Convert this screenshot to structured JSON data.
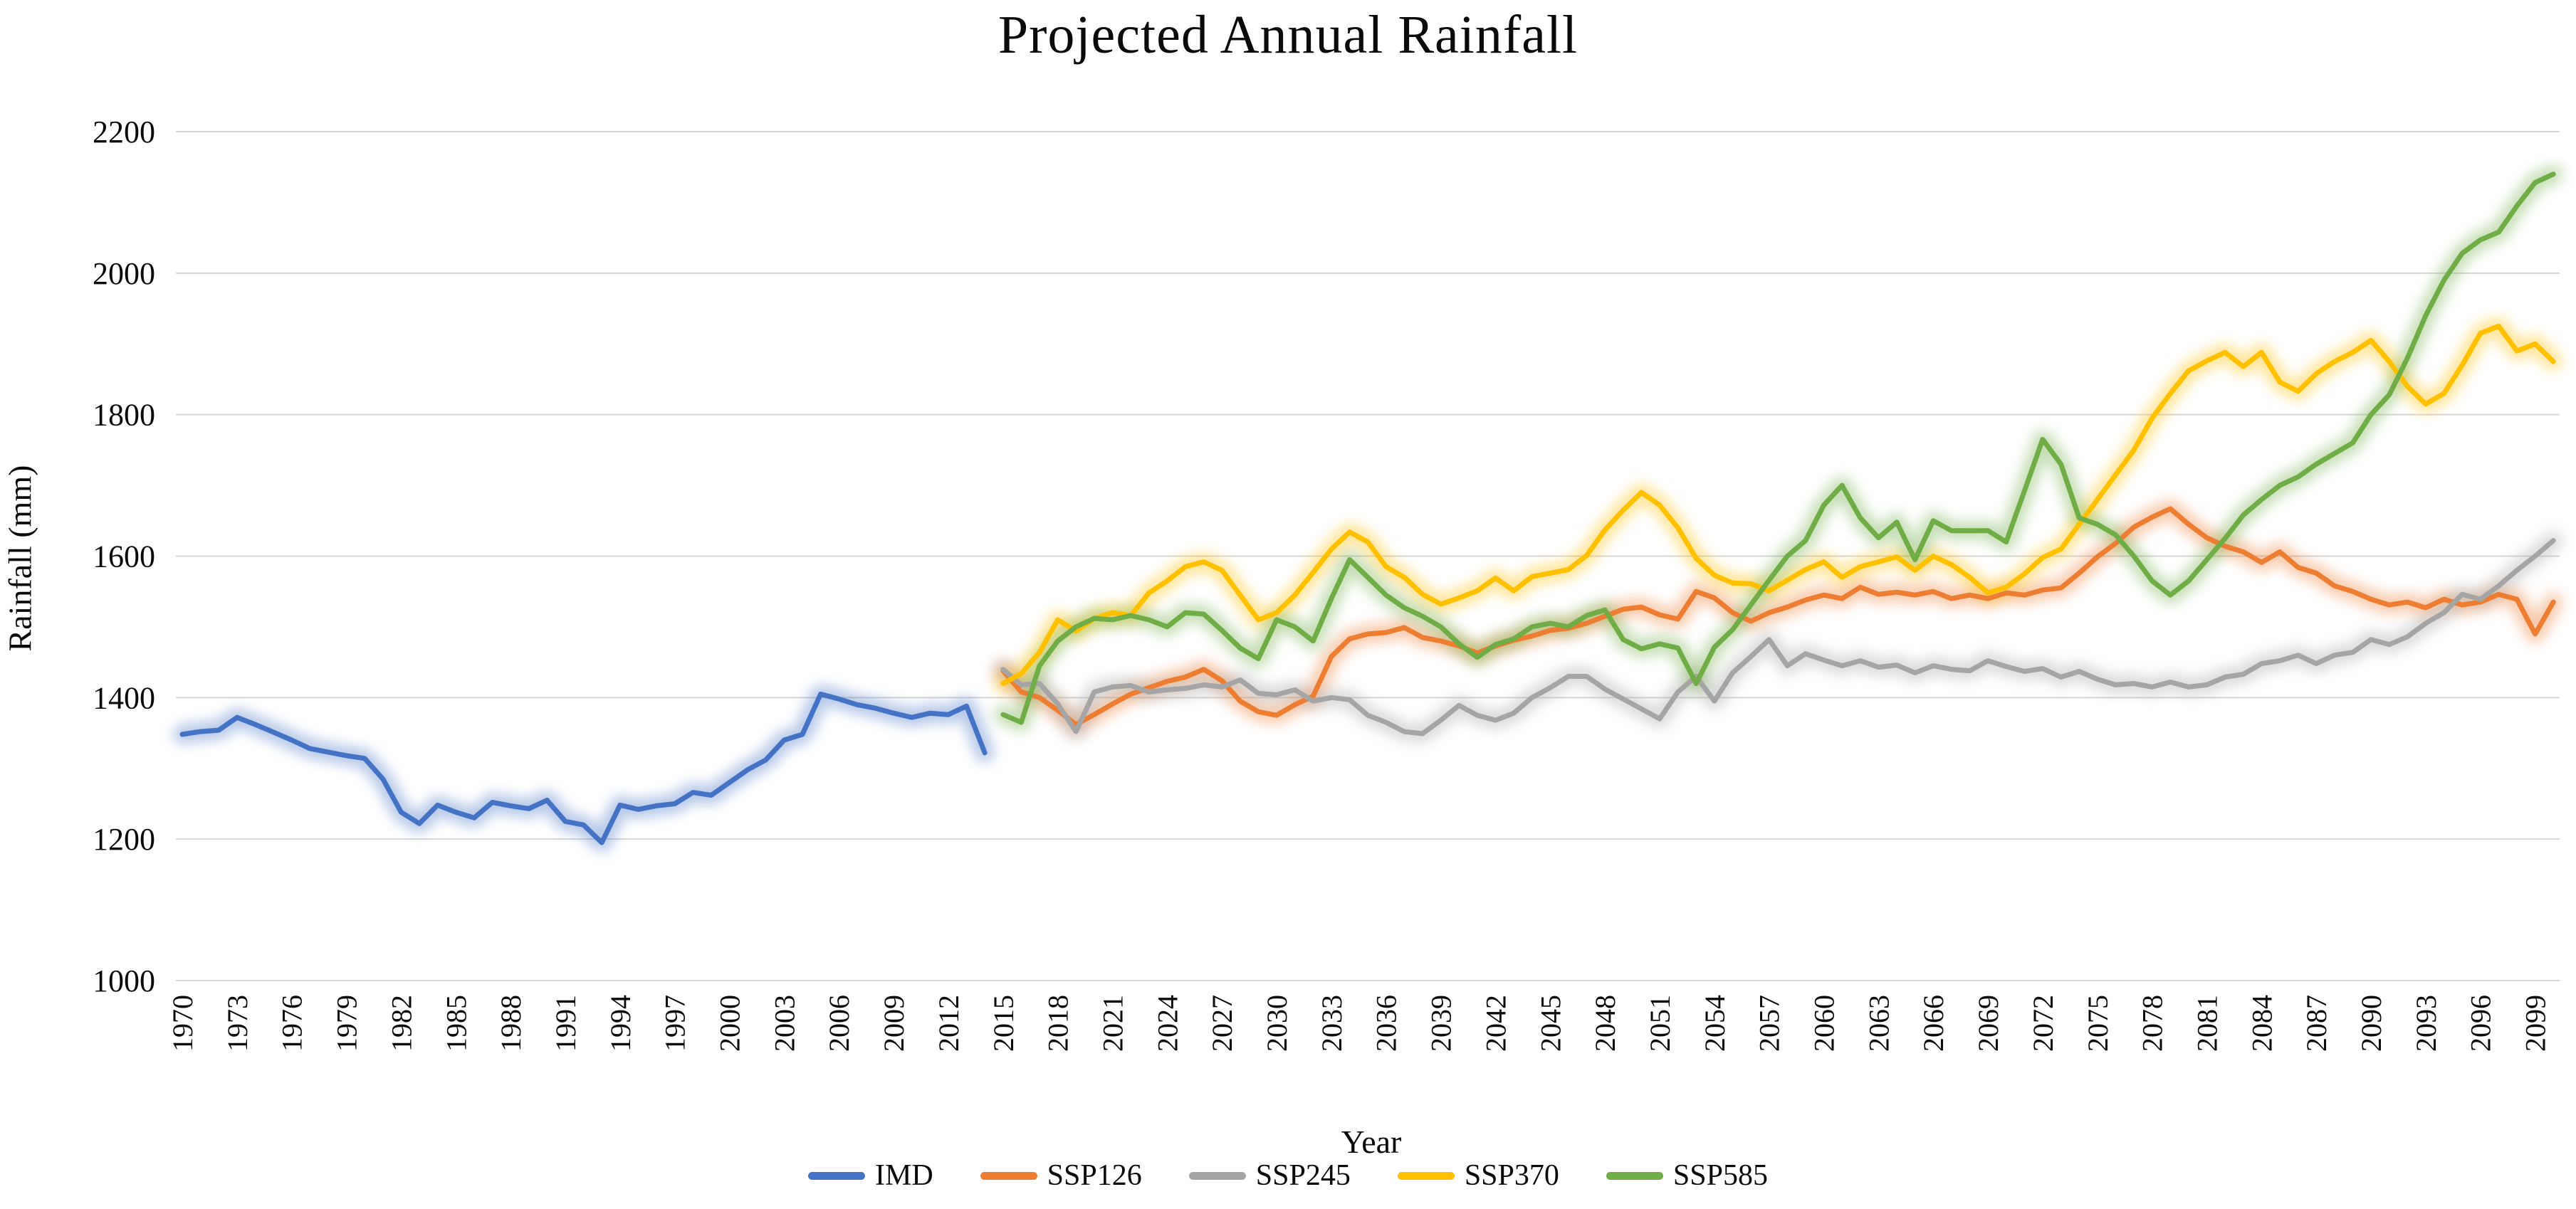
{
  "title": "Projected Annual Rainfall",
  "y_axis": {
    "title": "Rainfall (mm)",
    "min": 1000,
    "max": 2200,
    "tick_step": 200,
    "ticks": [
      2200,
      2000,
      1800,
      1600,
      1400,
      1200,
      1000
    ]
  },
  "x_axis": {
    "title": "Year",
    "tick_start": 1970,
    "tick_end": 2099,
    "tick_step": 3
  },
  "legend": [
    {
      "label": "IMD",
      "color": "#4472C4"
    },
    {
      "label": "SSP126",
      "color": "#ED7D31"
    },
    {
      "label": "SSP245",
      "color": "#A5A5A5"
    },
    {
      "label": "SSP370",
      "color": "#FFC000"
    },
    {
      "label": "SSP585",
      "color": "#70AD47"
    }
  ],
  "grid_color": "#D6D6D6",
  "chart_data": {
    "type": "line",
    "title": "Projected Annual Rainfall",
    "xlabel": "Year",
    "ylabel": "Rainfall (mm)",
    "ylim": [
      1000,
      2200
    ],
    "xlim": [
      1969,
      2101
    ],
    "grid": "horizontal",
    "legend_position": "bottom",
    "series": [
      {
        "name": "IMD",
        "color": "#4472C4",
        "start_year": 1970,
        "values": [
          1348,
          1352,
          1354,
          1372,
          1362,
          1351,
          1340,
          1328,
          1323,
          1318,
          1314,
          1285,
          1238,
          1222,
          1248,
          1238,
          1230,
          1252,
          1247,
          1243,
          1255,
          1225,
          1220,
          1195,
          1248,
          1242,
          1247,
          1250,
          1266,
          1262,
          1280,
          1298,
          1312,
          1340,
          1348,
          1405,
          1398,
          1390,
          1385,
          1378,
          1372,
          1378,
          1376,
          1388,
          1322
        ]
      },
      {
        "name": "SSP126",
        "color": "#ED7D31",
        "start_year": 2015,
        "values": [
          1438,
          1408,
          1400,
          1382,
          1362,
          1376,
          1391,
          1405,
          1414,
          1423,
          1429,
          1440,
          1424,
          1395,
          1380,
          1375,
          1390,
          1402,
          1458,
          1483,
          1490,
          1492,
          1499,
          1485,
          1480,
          1473,
          1463,
          1473,
          1481,
          1487,
          1495,
          1498,
          1505,
          1515,
          1525,
          1528,
          1517,
          1511,
          1550,
          1541,
          1520,
          1508,
          1520,
          1528,
          1538,
          1545,
          1540,
          1556,
          1546,
          1549,
          1545,
          1550,
          1540,
          1545,
          1540,
          1548,
          1545,
          1552,
          1555,
          1576,
          1599,
          1618,
          1641,
          1655,
          1667,
          1645,
          1626,
          1614,
          1606,
          1591,
          1606,
          1584,
          1576,
          1558,
          1550,
          1539,
          1531,
          1535,
          1527,
          1539,
          1531,
          1535,
          1546,
          1539,
          1490,
          1535
        ]
      },
      {
        "name": "SSP245",
        "color": "#A5A5A5",
        "start_year": 2015,
        "values": [
          1440,
          1418,
          1420,
          1391,
          1352,
          1408,
          1415,
          1417,
          1408,
          1411,
          1413,
          1418,
          1415,
          1425,
          1406,
          1404,
          1411,
          1395,
          1400,
          1397,
          1375,
          1365,
          1352,
          1349,
          1368,
          1389,
          1375,
          1368,
          1378,
          1400,
          1414,
          1430,
          1430,
          1412,
          1398,
          1384,
          1370,
          1408,
          1430,
          1395,
          1435,
          1458,
          1482,
          1445,
          1462,
          1453,
          1445,
          1452,
          1443,
          1446,
          1435,
          1445,
          1440,
          1438,
          1452,
          1444,
          1437,
          1441,
          1429,
          1437,
          1426,
          1418,
          1420,
          1415,
          1422,
          1415,
          1418,
          1429,
          1433,
          1448,
          1452,
          1460,
          1448,
          1460,
          1464,
          1482,
          1475,
          1486,
          1505,
          1520,
          1546,
          1539,
          1558,
          1580,
          1600,
          1622
        ]
      },
      {
        "name": "SSP370",
        "color": "#FFC000",
        "start_year": 2015,
        "values": [
          1420,
          1434,
          1464,
          1510,
          1494,
          1512,
          1520,
          1516,
          1548,
          1565,
          1585,
          1592,
          1580,
          1545,
          1510,
          1520,
          1545,
          1577,
          1610,
          1634,
          1620,
          1585,
          1570,
          1546,
          1532,
          1541,
          1551,
          1569,
          1551,
          1571,
          1576,
          1581,
          1601,
          1637,
          1665,
          1690,
          1672,
          1640,
          1597,
          1573,
          1562,
          1561,
          1551,
          1566,
          1581,
          1592,
          1570,
          1585,
          1592,
          1599,
          1580,
          1600,
          1588,
          1570,
          1548,
          1556,
          1575,
          1598,
          1610,
          1645,
          1680,
          1715,
          1750,
          1795,
          1830,
          1862,
          1876,
          1888,
          1868,
          1888,
          1846,
          1833,
          1858,
          1875,
          1888,
          1905,
          1875,
          1840,
          1815,
          1830,
          1870,
          1915,
          1925,
          1890,
          1900,
          1875
        ]
      },
      {
        "name": "SSP585",
        "color": "#70AD47",
        "start_year": 2015,
        "values": [
          1376,
          1365,
          1445,
          1480,
          1500,
          1512,
          1510,
          1516,
          1510,
          1500,
          1520,
          1518,
          1495,
          1470,
          1455,
          1510,
          1500,
          1480,
          1540,
          1595,
          1570,
          1545,
          1527,
          1515,
          1500,
          1476,
          1457,
          1475,
          1483,
          1500,
          1505,
          1500,
          1516,
          1524,
          1482,
          1469,
          1476,
          1470,
          1420,
          1471,
          1496,
          1531,
          1566,
          1600,
          1622,
          1672,
          1700,
          1654,
          1626,
          1648,
          1595,
          1650,
          1636,
          1636,
          1636,
          1620,
          1692,
          1765,
          1730,
          1654,
          1645,
          1630,
          1600,
          1565,
          1545,
          1565,
          1595,
          1625,
          1658,
          1680,
          1700,
          1712,
          1730,
          1745,
          1760,
          1800,
          1828,
          1880,
          1940,
          1990,
          2028,
          2047,
          2058,
          2095,
          2128,
          2140
        ]
      }
    ]
  }
}
